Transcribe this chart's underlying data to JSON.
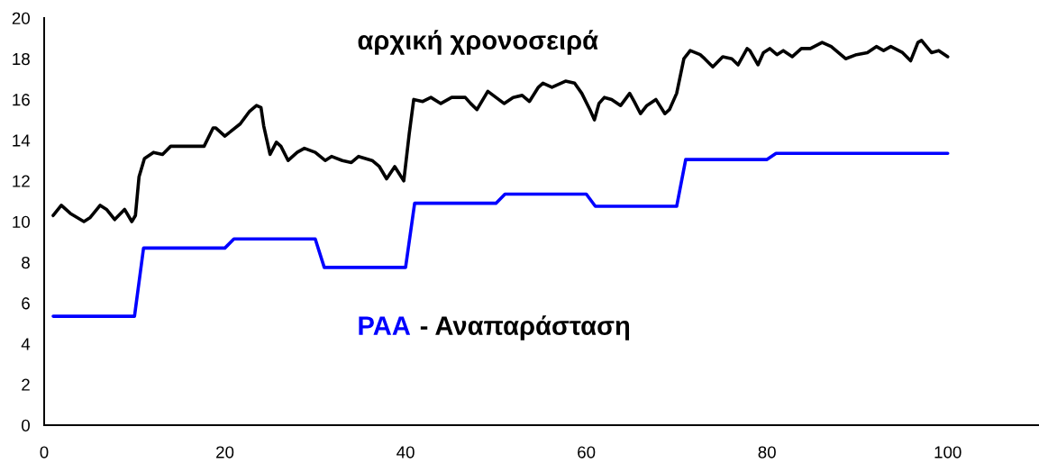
{
  "chart_data": {
    "type": "line",
    "series": [
      {
        "name": "αρχική χρονοσειρά",
        "color": "#000000",
        "x": [
          1.0,
          1.9,
          2.9,
          4.4,
          5.1,
          6.2,
          6.9,
          7.8,
          8.9,
          9.7,
          10.1,
          10.5,
          11.1,
          12.1,
          13.1,
          14.0,
          15.0,
          16.4,
          17.7,
          18.7,
          19.0,
          20.0,
          21.7,
          22.7,
          23.5,
          24.0,
          24.3,
          25.0,
          25.7,
          26.2,
          27.0,
          28.0,
          28.8,
          30.0,
          31.1,
          31.8,
          33.0,
          34.0,
          34.8,
          36.3,
          37.1,
          37.9,
          38.8,
          39.8,
          40.4,
          40.9,
          41.9,
          42.8,
          43.9,
          45.1,
          46.6,
          47.2,
          47.9,
          49.1,
          49.7,
          50.9,
          51.9,
          52.9,
          53.7,
          54.7,
          55.2,
          56.2,
          57.7,
          58.7,
          59.5,
          60.4,
          60.9,
          61.4,
          62.0,
          62.8,
          63.8,
          64.8,
          65.3,
          66.0,
          66.7,
          67.7,
          68.7,
          69.2,
          70.0,
          70.8,
          71.5,
          72.6,
          73.1,
          74.0,
          75.1,
          76.1,
          76.8,
          77.8,
          78.1,
          79.0,
          79.6,
          80.3,
          81.1,
          81.8,
          82.8,
          83.8,
          84.8,
          86.1,
          87.1,
          88.7,
          89.9,
          91.1,
          92.1,
          92.9,
          93.7,
          95.0,
          95.9,
          96.7,
          97.1,
          98.2,
          99.0,
          100.0
        ],
        "values": [
          10.3,
          10.8,
          10.4,
          10.0,
          10.2,
          10.8,
          10.6,
          10.1,
          10.6,
          10.0,
          10.3,
          12.2,
          13.1,
          13.4,
          13.3,
          13.7,
          13.7,
          13.7,
          13.7,
          14.6,
          14.6,
          14.2,
          14.8,
          15.4,
          15.7,
          15.6,
          14.7,
          13.3,
          13.9,
          13.7,
          13.0,
          13.4,
          13.6,
          13.4,
          13.0,
          13.2,
          13.0,
          12.9,
          13.2,
          13.0,
          12.7,
          12.1,
          12.7,
          12.0,
          14.3,
          16.0,
          15.9,
          16.1,
          15.8,
          16.1,
          16.1,
          15.8,
          15.5,
          16.4,
          16.2,
          15.8,
          16.1,
          16.2,
          15.9,
          16.6,
          16.8,
          16.6,
          16.9,
          16.8,
          16.3,
          15.5,
          15.0,
          15.8,
          16.1,
          16.0,
          15.7,
          16.3,
          15.9,
          15.3,
          15.7,
          16.0,
          15.3,
          15.5,
          16.3,
          18.0,
          18.4,
          18.2,
          18.0,
          17.6,
          18.1,
          18.0,
          17.7,
          18.5,
          18.4,
          17.7,
          18.3,
          18.5,
          18.2,
          18.4,
          18.1,
          18.5,
          18.5,
          18.8,
          18.6,
          18.0,
          18.2,
          18.3,
          18.6,
          18.4,
          18.6,
          18.3,
          17.9,
          18.8,
          18.9,
          18.3,
          18.4,
          18.1
        ]
      },
      {
        "name": "PAA",
        "color": "#0000ff",
        "x": [
          1,
          10,
          11,
          20,
          21,
          30,
          31,
          40,
          41,
          50,
          51,
          60,
          61,
          70,
          71,
          80,
          81,
          100
        ],
        "values": [
          5.35,
          5.35,
          8.7,
          8.7,
          9.15,
          9.15,
          7.75,
          7.75,
          10.9,
          10.9,
          11.35,
          11.35,
          10.75,
          10.75,
          13.05,
          13.05,
          13.35,
          13.35
        ]
      }
    ],
    "annotations": [
      "- Αναπαράσταση"
    ],
    "xlim": [
      0,
      110
    ],
    "xticks": [
      0,
      20,
      40,
      60,
      80,
      100
    ],
    "ylim": [
      0,
      20
    ],
    "yticks": [
      0,
      2,
      4,
      6,
      8,
      10,
      12,
      14,
      16,
      18,
      20
    ],
    "line_style": "solid"
  }
}
